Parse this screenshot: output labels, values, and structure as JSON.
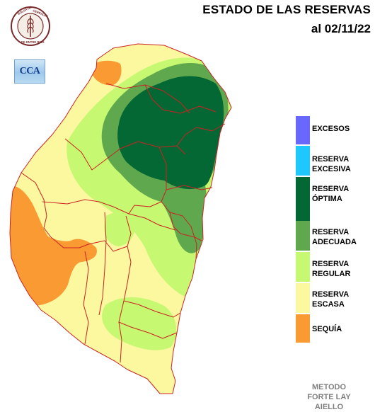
{
  "header": {
    "title_line1": "ESTADO DE LAS RESERVAS",
    "title_line2": "al 02/11/22"
  },
  "logos": {
    "bolsa_text": "BOLSA DE CEREALES DE ENTRE RIOS",
    "cca_text": "CCA"
  },
  "legend": [
    {
      "label": "EXCESOS",
      "color": "#6868ff"
    },
    {
      "label": "RESERVA\nEXCESIVA",
      "color": "#1ec8ff"
    },
    {
      "label": "RESERVA\nÓPTIMA",
      "color": "#036833"
    },
    {
      "label": "RESERVA\nADECUADA",
      "color": "#5fa84e"
    },
    {
      "label": "RESERVA\nREGULAR",
      "color": "#c6f871"
    },
    {
      "label": "RESERVA\nESCASA",
      "color": "#fbf8a0"
    },
    {
      "label": "SEQUÍA",
      "color": "#fa9a33"
    }
  ],
  "footer": {
    "method": "METODO\nFORTE LAY\nAIELLO"
  },
  "colors": {
    "border": "#cc2222",
    "background": "#ffffff"
  }
}
